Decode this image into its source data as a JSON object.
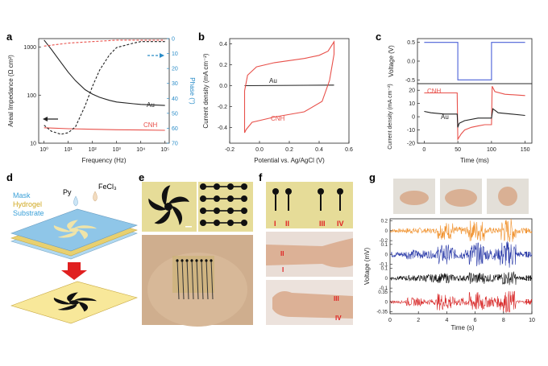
{
  "panel_letters": {
    "a": "a",
    "b": "b",
    "c": "c",
    "d": "d",
    "e": "e",
    "f": "f",
    "g": "g"
  },
  "colors": {
    "au": "#222222",
    "cnh": "#e8504a",
    "phase_axis": "#2a8cc8",
    "voltage_square": "#4a60d8",
    "mask": "#8fc6e8",
    "hydrogel": "#e8d070",
    "substrate": "#b0d8f0",
    "arrow": "#e02020"
  },
  "chart_data": [
    {
      "type": "line",
      "panel": "a",
      "xlabel": "Frequency (Hz)",
      "ylabel": "Areal Impedance (Ω cm²)",
      "y2label": "Phase (°)",
      "xscale": "log",
      "yscale": "log",
      "xlim": [
        0.6,
        150000
      ],
      "ylim": [
        10,
        1500
      ],
      "y2lim": [
        0,
        70
      ],
      "y2_inverted": true,
      "xticks": [
        "10⁰",
        "10¹",
        "10²",
        "10³",
        "10⁴",
        "10⁵"
      ],
      "yticks": [
        "10",
        "100",
        "1000"
      ],
      "y2ticks": [
        "0",
        "10",
        "20",
        "30",
        "40",
        "50",
        "60",
        "70"
      ],
      "series": [
        {
          "name": "Au",
          "axis": "impedance",
          "style": "solid",
          "color": "#222222",
          "x": [
            1,
            2,
            5,
            10,
            20,
            50,
            100,
            200,
            500,
            1000,
            5000,
            10000,
            50000,
            100000
          ],
          "y": [
            1400,
            900,
            480,
            300,
            200,
            130,
            105,
            90,
            78,
            72,
            66,
            64,
            62,
            61
          ]
        },
        {
          "name": "CNH",
          "axis": "impedance",
          "style": "solid",
          "color": "#e8504a",
          "x": [
            1,
            10,
            100,
            1000,
            10000,
            100000
          ],
          "y": [
            21,
            20,
            19.5,
            19,
            18.8,
            18.5
          ]
        },
        {
          "name": "Au",
          "axis": "phase",
          "style": "dashed",
          "color": "#222222",
          "x": [
            1,
            2,
            5,
            10,
            20,
            50,
            100,
            200,
            500,
            1000,
            5000,
            10000,
            50000,
            100000
          ],
          "y": [
            58,
            62,
            64,
            63,
            59,
            45,
            32,
            21,
            11,
            6,
            3,
            2,
            2,
            2
          ]
        },
        {
          "name": "CNH",
          "axis": "phase",
          "style": "dashed",
          "color": "#e8504a",
          "x": [
            1,
            10,
            100,
            1000,
            10000,
            100000
          ],
          "y": [
            5,
            3,
            2,
            1,
            1,
            1
          ]
        }
      ]
    },
    {
      "type": "line",
      "panel": "b",
      "xlabel": "Potential vs. Ag/AgCl (V)",
      "ylabel": "Current density (mA cm⁻²)",
      "xlim": [
        -0.2,
        0.6
      ],
      "ylim": [
        -0.55,
        0.45
      ],
      "xticks": [
        "-0.2",
        "0.0",
        "0.2",
        "0.4",
        "0.6"
      ],
      "yticks": [
        "-0.4",
        "-0.2",
        "0.0",
        "0.2",
        "0.4"
      ],
      "series": [
        {
          "name": "Au",
          "color": "#222222",
          "x": [
            -0.1,
            0.5
          ],
          "y": [
            0.0,
            0.005
          ]
        },
        {
          "name": "CNH",
          "color": "#e8504a",
          "x": [
            -0.1,
            -0.08,
            -0.02,
            0.1,
            0.2,
            0.3,
            0.4,
            0.46,
            0.5,
            0.5,
            0.47,
            0.42,
            0.3,
            0.1,
            -0.05,
            -0.09,
            -0.1,
            -0.1
          ],
          "y": [
            -0.05,
            0.1,
            0.18,
            0.22,
            0.24,
            0.26,
            0.29,
            0.33,
            0.42,
            0.3,
            0.05,
            -0.15,
            -0.25,
            -0.3,
            -0.35,
            -0.42,
            -0.45,
            -0.05
          ]
        }
      ]
    },
    {
      "type": "line",
      "panel": "c-top",
      "ylabel": "Voltage (V)",
      "xlim": [
        -10,
        160
      ],
      "ylim": [
        -0.6,
        0.6
      ],
      "yticks": [
        "0.5",
        "0.0",
        "-0.5"
      ],
      "series": [
        {
          "name": "Voltage",
          "color": "#4a60d8",
          "x": [
            0,
            50,
            50,
            100,
            100,
            150
          ],
          "y": [
            0.5,
            0.5,
            -0.5,
            -0.5,
            0.5,
            0.5
          ]
        }
      ]
    },
    {
      "type": "line",
      "panel": "c-bottom",
      "xlabel": "Time (ms)",
      "ylabel": "Current density (mA cm⁻²)",
      "xlim": [
        -10,
        160
      ],
      "ylim": [
        -20,
        25
      ],
      "xticks": [
        "0",
        "50",
        "100",
        "150"
      ],
      "yticks": [
        "20",
        "10",
        "0",
        "-10",
        "-20"
      ],
      "series": [
        {
          "name": "CNH",
          "color": "#e8504a",
          "x": [
            0,
            49,
            50,
            55,
            60,
            70,
            80,
            90,
            100,
            101,
            105,
            120,
            150
          ],
          "y": [
            18,
            18,
            -17,
            -13,
            -10,
            -8,
            -7,
            -6,
            -6,
            23,
            19,
            17,
            16
          ]
        },
        {
          "name": "Au",
          "color": "#222222",
          "x": [
            0,
            10,
            30,
            49,
            50,
            52,
            60,
            80,
            100,
            102,
            110,
            150
          ],
          "y": [
            4,
            3,
            2,
            2,
            -8,
            -5,
            -3,
            -1,
            -1,
            6,
            3,
            1
          ]
        }
      ]
    },
    {
      "type": "line",
      "panel": "g",
      "xlabel": "Time (s)",
      "ylabel": "Voltage (mV)",
      "xlim": [
        0,
        10
      ],
      "xticks": [
        "0",
        "2",
        "4",
        "6",
        "8",
        "10"
      ],
      "series": [
        {
          "name": "I",
          "color": "#f0902a",
          "yticks": [
            "0.2",
            "0",
            "-0.2"
          ],
          "amp": [
            0.04,
            0.06,
            0.05,
            0.18,
            0.08,
            0.22,
            0.06,
            0.25,
            0.05
          ]
        },
        {
          "name": "II",
          "color": "#2a3aa8",
          "yticks": [
            "0.1",
            "0",
            "-0.1"
          ],
          "amp": [
            0.03,
            0.05,
            0.04,
            0.1,
            0.05,
            0.12,
            0.06,
            0.14,
            0.03
          ]
        },
        {
          "name": "III",
          "color": "#111111",
          "yticks": [
            "0.1",
            "0",
            "-0.1"
          ],
          "amp": [
            0.02,
            0.03,
            0.04,
            0.05,
            0.03,
            0.06,
            0.04,
            0.07,
            0.02
          ]
        },
        {
          "name": "IV",
          "color": "#d82a2a",
          "yticks": [
            "0.35",
            "0",
            "-0.35"
          ],
          "amp": [
            0.05,
            0.15,
            0.1,
            0.3,
            0.15,
            0.35,
            0.2,
            0.4,
            0.05
          ]
        }
      ]
    }
  ],
  "panel_a": {
    "title_x": "Frequency (Hz)",
    "title_y": "Areal Impedance (Ω cm²)",
    "title_y2": "Phase (°)",
    "label_au": "Au",
    "label_cnh": "CNH"
  },
  "panel_b": {
    "title_x": "Potential vs. Ag/AgCl (V)",
    "title_y": "Current density (mA cm⁻²)",
    "label_au": "Au",
    "label_cnh": "CNH"
  },
  "panel_c": {
    "title_y_top": "Voltage (V)",
    "title_y_bottom": "Current density (mA cm⁻²)",
    "title_x": "Time (ms)",
    "label_cnh": "CNH",
    "label_au": "Au"
  },
  "panel_d": {
    "mask": "Mask",
    "hydrogel": "Hydrogel",
    "substrate": "Substrate",
    "py": "Py",
    "fecl3": "FeCl₃"
  },
  "panel_f": {
    "electrode_labels": [
      "I",
      "II",
      "III",
      "IV"
    ],
    "arm_labels_top": [
      "II",
      "I"
    ],
    "arm_labels_bottom": [
      "III",
      "IV"
    ]
  },
  "panel_g": {
    "title_x": "Time (s)",
    "title_y": "Voltage (mV)"
  }
}
